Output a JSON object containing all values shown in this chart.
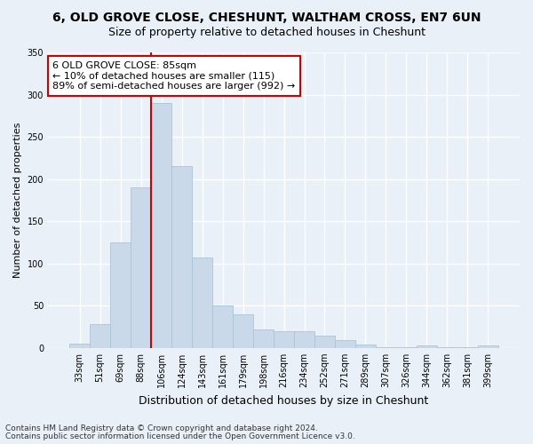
{
  "title1": "6, OLD GROVE CLOSE, CHESHUNT, WALTHAM CROSS, EN7 6UN",
  "title2": "Size of property relative to detached houses in Cheshunt",
  "xlabel": "Distribution of detached houses by size in Cheshunt",
  "ylabel": "Number of detached properties",
  "categories": [
    "33sqm",
    "51sqm",
    "69sqm",
    "88sqm",
    "106sqm",
    "124sqm",
    "143sqm",
    "161sqm",
    "179sqm",
    "198sqm",
    "216sqm",
    "234sqm",
    "252sqm",
    "271sqm",
    "289sqm",
    "307sqm",
    "326sqm",
    "344sqm",
    "362sqm",
    "381sqm",
    "399sqm"
  ],
  "values": [
    5,
    28,
    125,
    190,
    290,
    215,
    107,
    50,
    40,
    22,
    20,
    20,
    14,
    9,
    4,
    1,
    1,
    3,
    1,
    1,
    3
  ],
  "bar_color": "#cad9ea",
  "bar_edge_color": "#a8c4d8",
  "vline_color": "#cc0000",
  "annotation_text": "6 OLD GROVE CLOSE: 85sqm\n← 10% of detached houses are smaller (115)\n89% of semi-detached houses are larger (992) →",
  "annotation_box_color": "#ffffff",
  "annotation_box_edge_color": "#cc0000",
  "ylim": [
    0,
    350
  ],
  "yticks": [
    0,
    50,
    100,
    150,
    200,
    250,
    300,
    350
  ],
  "bg_color": "#eaf0f8",
  "plot_bg_color": "#eaf0f8",
  "grid_color": "#ffffff",
  "footer_line1": "Contains HM Land Registry data © Crown copyright and database right 2024.",
  "footer_line2": "Contains public sector information licensed under the Open Government Licence v3.0.",
  "title1_fontsize": 10,
  "title2_fontsize": 9,
  "xlabel_fontsize": 9,
  "ylabel_fontsize": 8,
  "tick_fontsize": 7,
  "annotation_fontsize": 8,
  "footer_fontsize": 6.5,
  "vline_x_index": 3.5
}
